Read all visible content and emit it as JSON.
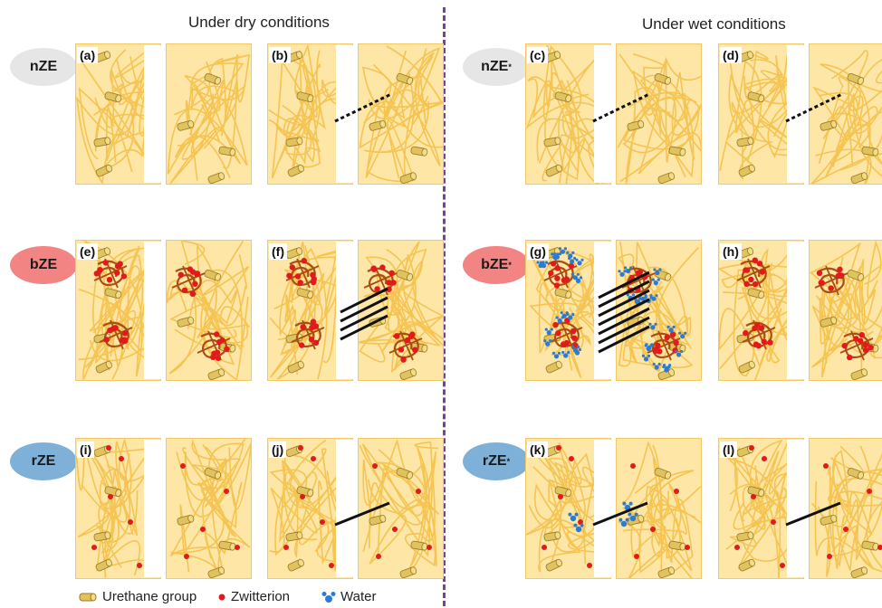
{
  "headings": {
    "dry": "Under dry conditions",
    "wet": "Under wet conditions"
  },
  "rows": [
    {
      "dry_label": "nZE",
      "wet_label": "nZE",
      "wet_sup": "*",
      "color": "#e6e6e6",
      "panels": [
        "(a)",
        "(b)",
        "(c)",
        "(d)"
      ]
    },
    {
      "dry_label": "bZE",
      "wet_label": "bZE",
      "wet_sup": "*",
      "color": "#f38484",
      "panels": [
        "(e)",
        "(f)",
        "(g)",
        "(h)"
      ]
    },
    {
      "dry_label": "rZE",
      "wet_label": "rZE",
      "wet_sup": "*",
      "color": "#7fb0d8",
      "panels": [
        "(i)",
        "(j)",
        "(k)",
        "(l)"
      ]
    }
  ],
  "legend": {
    "urethane": "Urethane group",
    "zwitterion": "Zwitterion",
    "water": "Water"
  },
  "colors": {
    "matrix": "#fde6a6",
    "chain": "#f5c452",
    "urethane": "#e0c25f",
    "zwitterion": "#e31a1c",
    "water": "#2a7bd4",
    "brush": "#a94f14",
    "divider": "#7a3f9d"
  }
}
